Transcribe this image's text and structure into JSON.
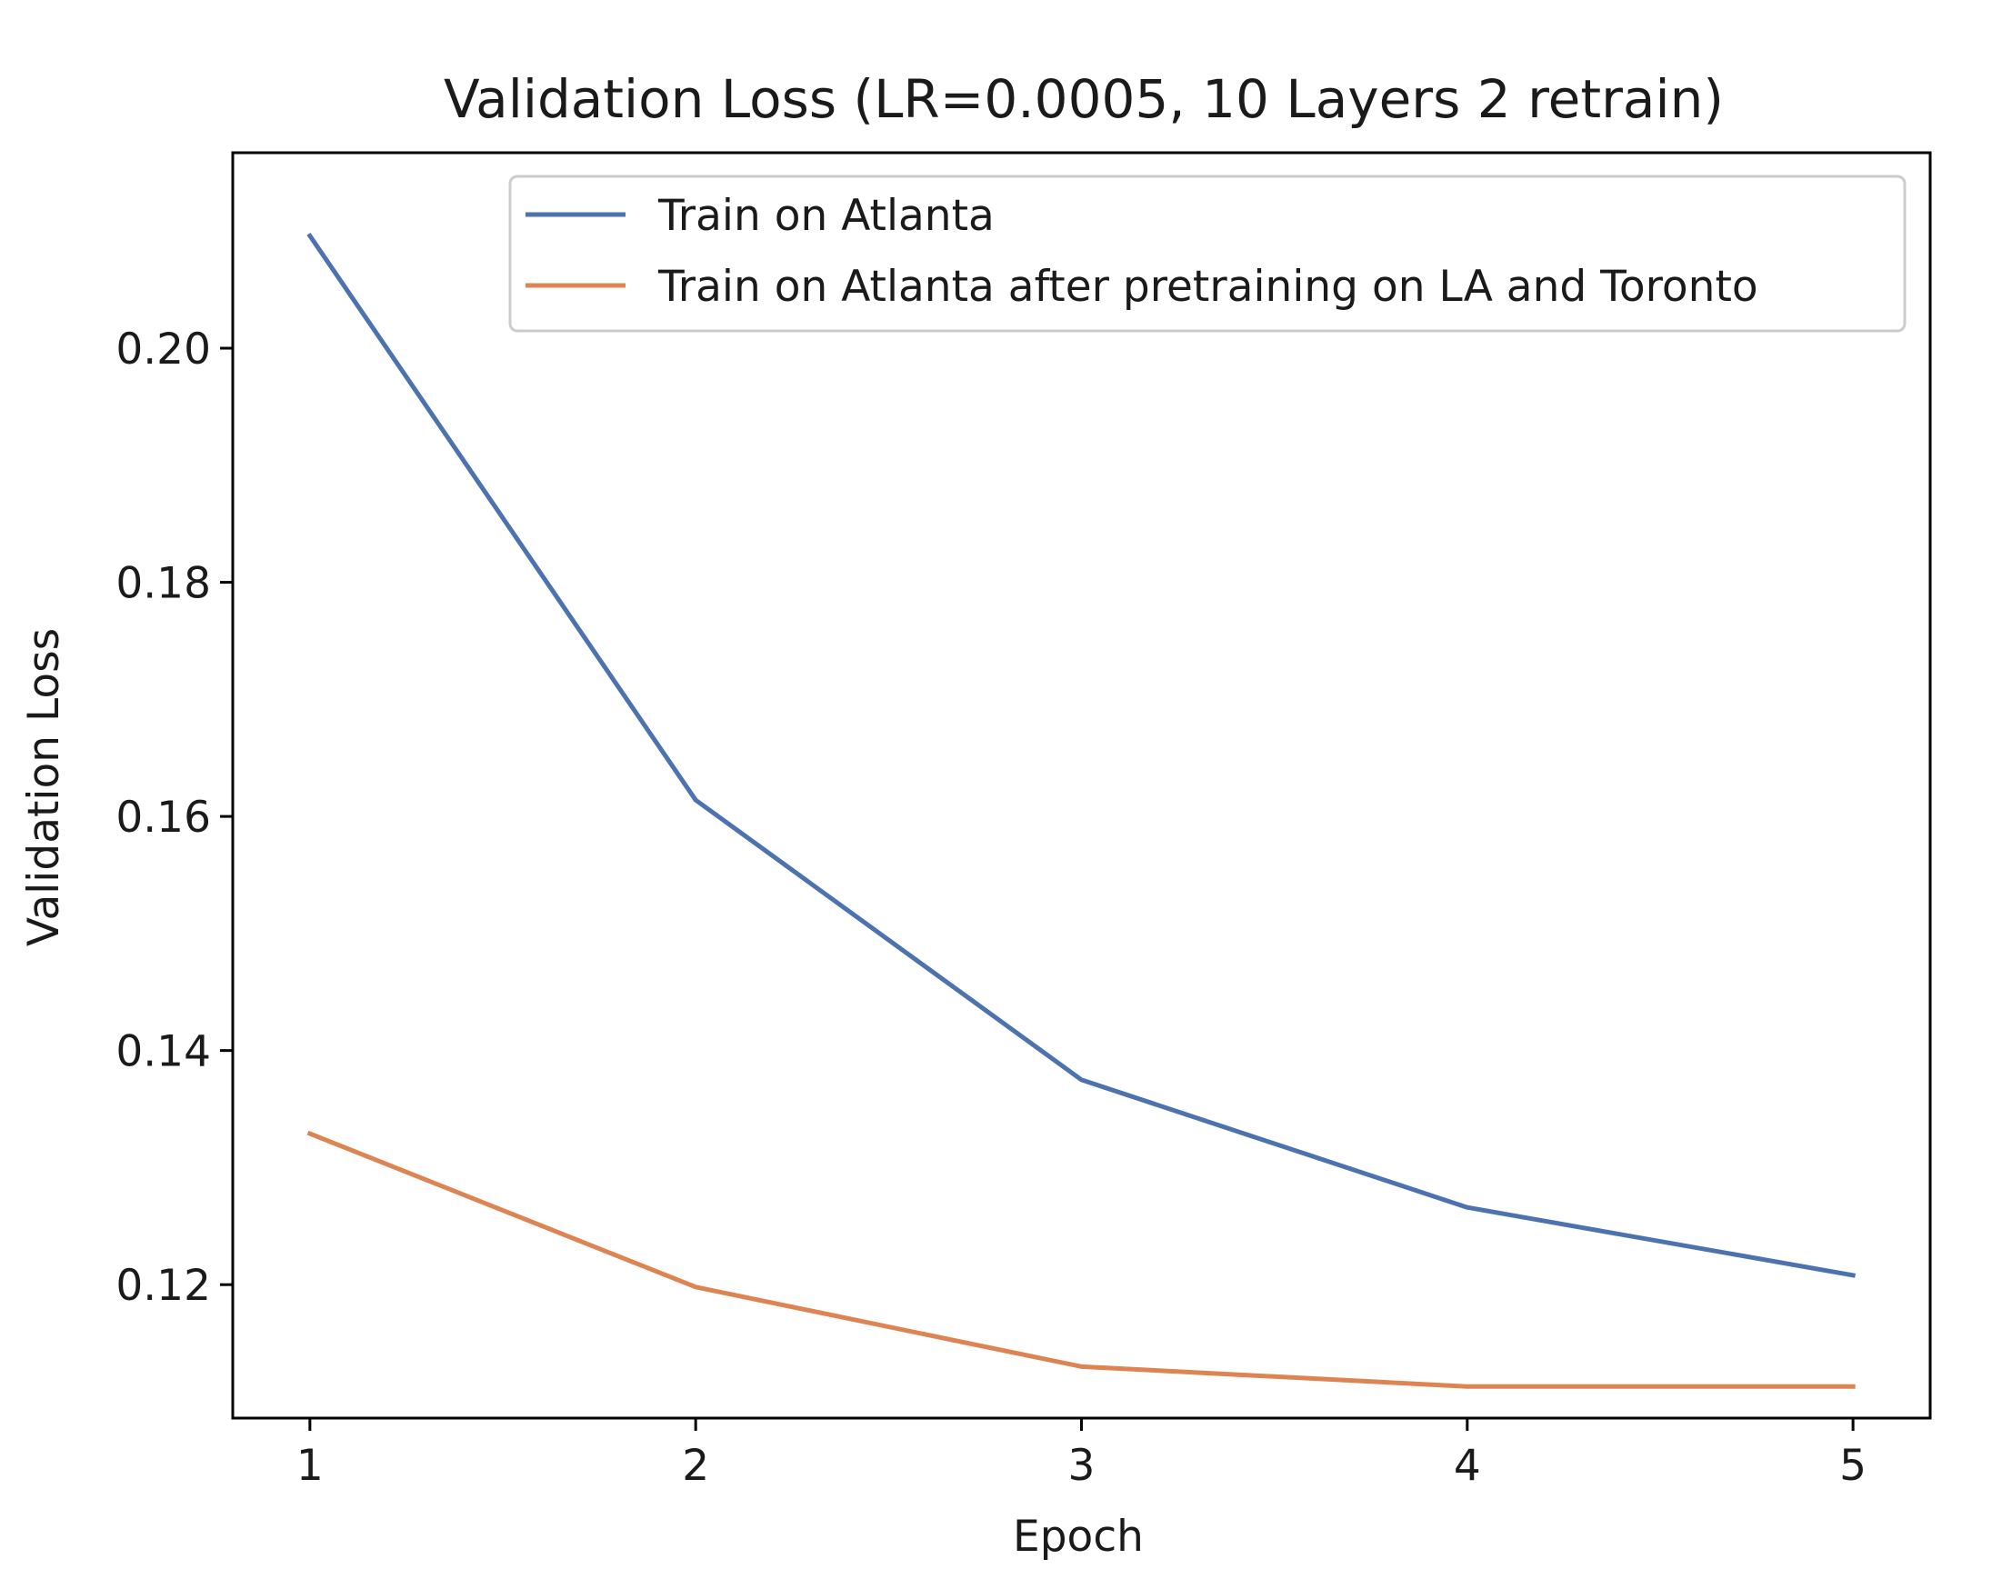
{
  "chart_data": {
    "type": "line",
    "title": "Validation Loss (LR=0.0005, 10 Layers 2 retrain)",
    "xlabel": "Epoch",
    "ylabel": "Validation Loss",
    "x": [
      1,
      2,
      3,
      4,
      5
    ],
    "xticks": [
      "1",
      "2",
      "3",
      "4",
      "5"
    ],
    "yticks": [
      "0.12",
      "0.14",
      "0.16",
      "0.18",
      "0.20"
    ],
    "xlim": [
      0.8,
      5.2
    ],
    "ylim": [
      0.1086,
      0.2167
    ],
    "grid": false,
    "legend_position": "top-right",
    "series": [
      {
        "name": "Train on Atlanta",
        "color": "#4c72b0",
        "values": [
          0.2096,
          0.1614,
          0.1375,
          0.1266,
          0.1208
        ]
      },
      {
        "name": "Train on Atlanta after pretraining on LA and Toronto",
        "color": "#dd8452",
        "values": [
          0.1329,
          0.1198,
          0.113,
          0.1113,
          0.1113
        ]
      }
    ]
  }
}
